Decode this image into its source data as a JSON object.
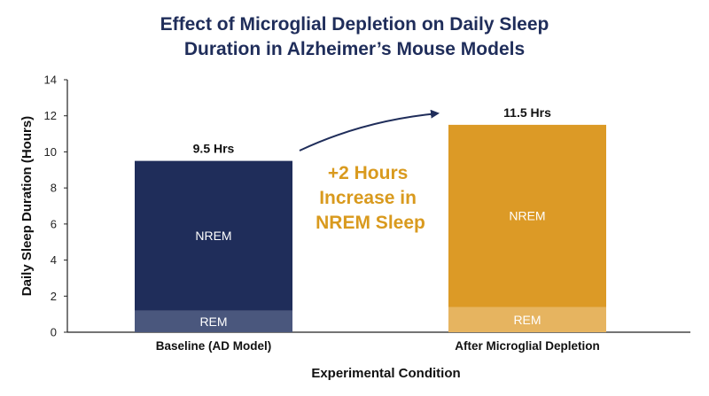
{
  "title_line1": "Effect of Microglial Depletion on Daily Sleep",
  "title_line2": "Duration in Alzheimer’s Mouse Models",
  "colors": {
    "baseline_nrem": "#1f2d5a",
    "baseline_rem": "#4a577d",
    "after_nrem": "#dc9a26",
    "after_rem": "#e6b460",
    "annotation": "#d99a1e",
    "arrow": "#1f2d5a"
  },
  "chart_data": {
    "type": "bar",
    "stacked": true,
    "title": "Effect of Microglial Depletion on Daily Sleep Duration in Alzheimer’s Mouse Models",
    "xlabel": "Experimental Condition",
    "ylabel": "Daily Sleep Duration (Hours)",
    "ylim": [
      0,
      14
    ],
    "yticks": [
      0,
      2,
      4,
      6,
      8,
      10,
      12,
      14
    ],
    "grid": false,
    "categories": [
      "Baseline (AD Model)",
      "After Microglial Depletion"
    ],
    "series": [
      {
        "name": "REM",
        "values": [
          1.2,
          1.4
        ]
      },
      {
        "name": "NREM",
        "values": [
          8.3,
          10.1
        ]
      }
    ],
    "totals": [
      9.5,
      11.5
    ],
    "total_labels": [
      "9.5 Hrs",
      "11.5 Hrs"
    ],
    "annotation": [
      "+2 Hours",
      "Increase in",
      "NREM Sleep"
    ]
  }
}
